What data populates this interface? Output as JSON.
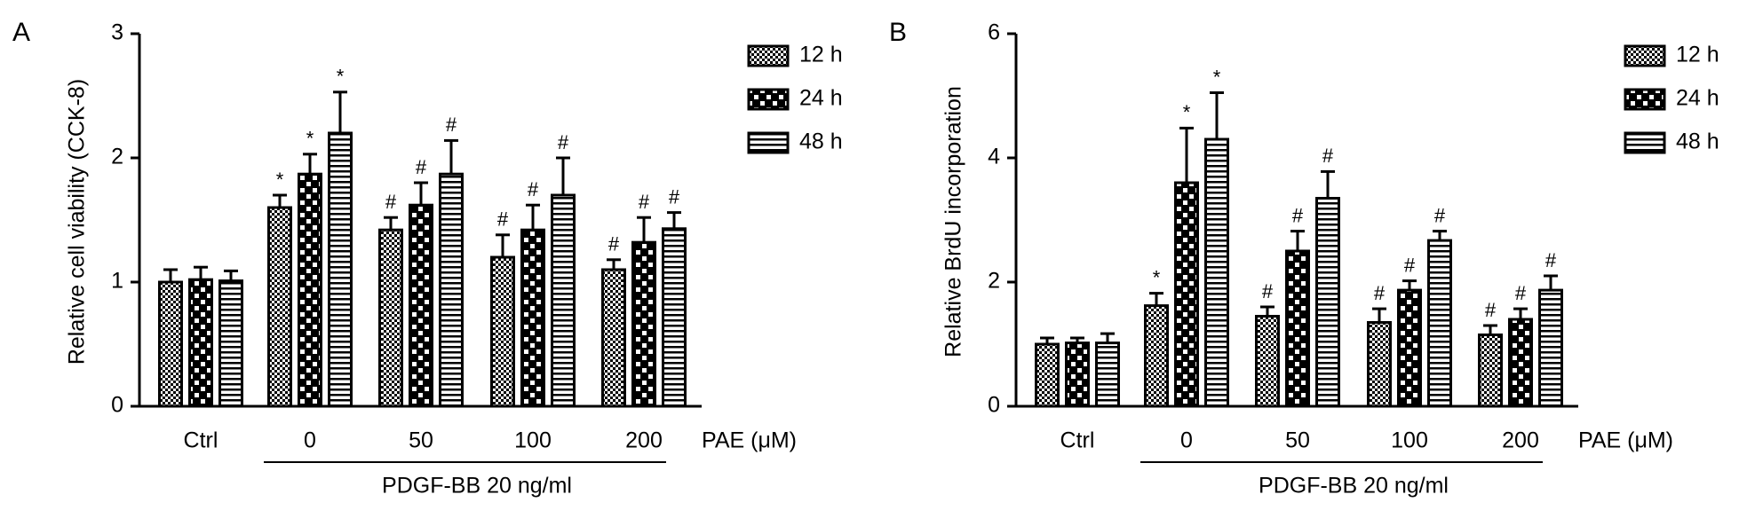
{
  "chart_data": [
    {
      "type": "bar",
      "panel": "A",
      "ylabel": "Relative cell viability (CCK-8)",
      "categories": [
        "Ctrl",
        "0",
        "50",
        "100",
        "200"
      ],
      "xlabel": "PAE (μM)",
      "bracket_label": "PDGF-BB 20 ng/ml",
      "ylim": [
        0,
        3
      ],
      "yticks": [
        0,
        1,
        2,
        3
      ],
      "legend": "right",
      "series": [
        {
          "name": "12 h",
          "color": "#000000",
          "pattern": "crosshatch",
          "values": [
            1.0,
            1.6,
            1.42,
            1.2,
            1.1
          ],
          "errors": [
            0.1,
            0.1,
            0.1,
            0.18,
            0.08
          ],
          "markers": [
            null,
            "*",
            "#",
            "#",
            "#"
          ]
        },
        {
          "name": "24 h",
          "color": "#000000",
          "pattern": "checker",
          "values": [
            1.02,
            1.87,
            1.62,
            1.42,
            1.32
          ],
          "errors": [
            0.1,
            0.16,
            0.18,
            0.2,
            0.2
          ],
          "markers": [
            null,
            "*",
            "#",
            "#",
            "#"
          ]
        },
        {
          "name": "48 h",
          "color": "#000000",
          "pattern": "stripes",
          "values": [
            1.01,
            2.2,
            1.87,
            1.7,
            1.43
          ],
          "errors": [
            0.08,
            0.33,
            0.27,
            0.3,
            0.13
          ],
          "markers": [
            null,
            "*",
            "#",
            "#",
            "#"
          ]
        }
      ]
    },
    {
      "type": "bar",
      "panel": "B",
      "ylabel": "Relative BrdU incorporation",
      "categories": [
        "Ctrl",
        "0",
        "50",
        "100",
        "200"
      ],
      "xlabel": "PAE (μM)",
      "bracket_label": "PDGF-BB 20 ng/ml",
      "ylim": [
        0,
        6
      ],
      "yticks": [
        0,
        2,
        4,
        6
      ],
      "legend": "right",
      "series": [
        {
          "name": "12 h",
          "color": "#000000",
          "pattern": "crosshatch",
          "values": [
            1.0,
            1.62,
            1.45,
            1.35,
            1.15
          ],
          "errors": [
            0.1,
            0.2,
            0.15,
            0.22,
            0.15
          ],
          "markers": [
            null,
            "*",
            "#",
            "#",
            "#"
          ]
        },
        {
          "name": "24 h",
          "color": "#000000",
          "pattern": "checker",
          "values": [
            1.02,
            3.6,
            2.5,
            1.87,
            1.4
          ],
          "errors": [
            0.08,
            0.88,
            0.32,
            0.15,
            0.17
          ],
          "markers": [
            null,
            "*",
            "#",
            "#",
            "#"
          ]
        },
        {
          "name": "48 h",
          "color": "#000000",
          "pattern": "stripes",
          "values": [
            1.02,
            4.3,
            3.35,
            2.67,
            1.87
          ],
          "errors": [
            0.15,
            0.75,
            0.43,
            0.15,
            0.23
          ],
          "markers": [
            null,
            "*",
            "#",
            "#",
            "#"
          ]
        }
      ]
    }
  ]
}
